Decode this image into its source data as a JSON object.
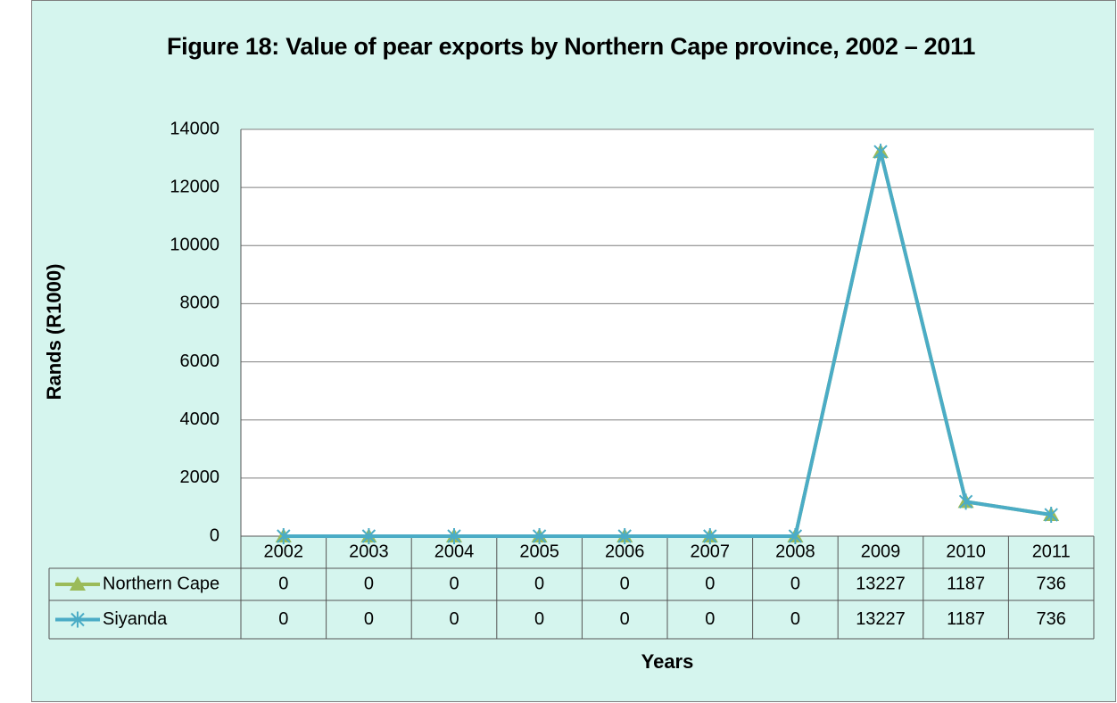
{
  "chart_data": {
    "type": "line",
    "title": "Figure 18: Value of pear exports by Northern Cape province, 2002 – 2011",
    "x_label": "Years",
    "y_label": "Rands (R1000)",
    "categories": [
      "2002",
      "2003",
      "2004",
      "2005",
      "2006",
      "2007",
      "2008",
      "2009",
      "2010",
      "2011"
    ],
    "series": [
      {
        "name": "Northern Cape",
        "color": "#9bbb59",
        "marker": "triangle",
        "values": [
          0,
          0,
          0,
          0,
          0,
          0,
          0,
          13227,
          1187,
          736
        ]
      },
      {
        "name": "Siyanda",
        "color": "#4bacc6",
        "marker": "star",
        "values": [
          0,
          0,
          0,
          0,
          0,
          0,
          0,
          13227,
          1187,
          736
        ]
      }
    ],
    "ylim": [
      0,
      14000
    ],
    "yticks": [
      0,
      2000,
      4000,
      6000,
      8000,
      10000,
      12000,
      14000
    ],
    "grid": true
  }
}
